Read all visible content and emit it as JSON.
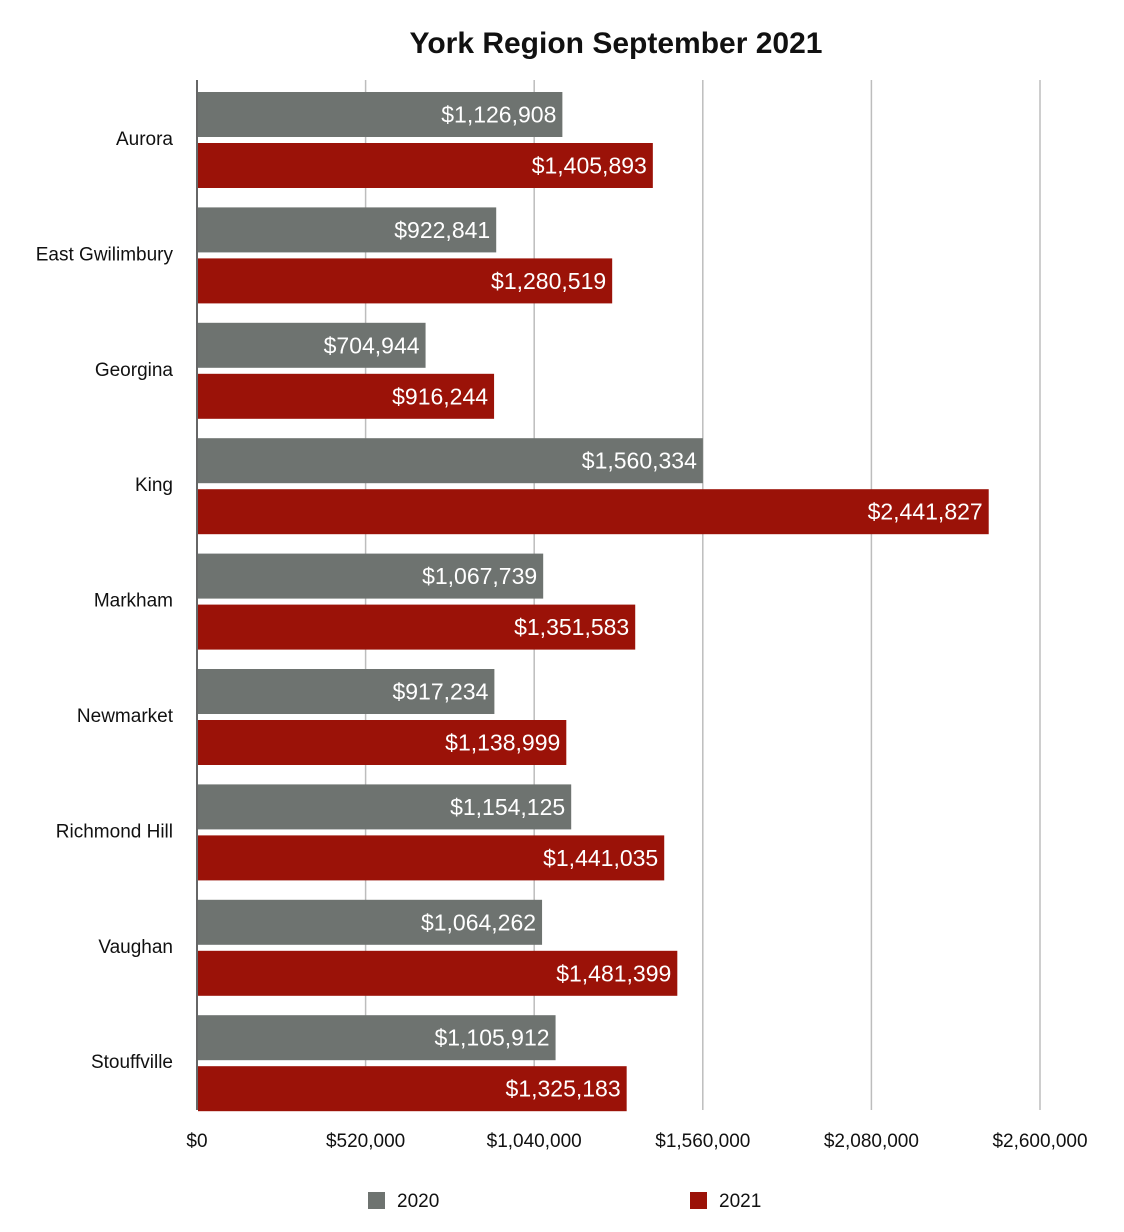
{
  "chart_data": {
    "type": "bar",
    "orientation": "horizontal",
    "title": "York Region September 2021",
    "categories": [
      "Aurora",
      "East Gwilimbury",
      "Georgina",
      "King",
      "Markham",
      "Newmarket",
      "Richmond Hill",
      "Vaughan",
      "Stouffville"
    ],
    "series": [
      {
        "name": "2020",
        "color": "#6e7370",
        "values": [
          1126908,
          922841,
          704944,
          1560334,
          1067739,
          917234,
          1154125,
          1064262,
          1105912
        ],
        "labels": [
          "$1,126,908",
          "$922,841",
          "$704,944",
          "$1,560,334",
          "$1,067,739",
          "$917,234",
          "$1,154,125",
          "$1,064,262",
          "$1,105,912"
        ]
      },
      {
        "name": "2021",
        "color": "#9b1208",
        "values": [
          1405893,
          1280519,
          916244,
          2441827,
          1351583,
          1138999,
          1441035,
          1481399,
          1325183
        ],
        "labels": [
          "$1,405,893",
          "$1,280,519",
          "$916,244",
          "$2,441,827",
          "$1,351,583",
          "$1,138,999",
          "$1,441,035",
          "$1,481,399",
          "$1,325,183"
        ]
      }
    ],
    "xlim": [
      0,
      2600000
    ],
    "x_ticks": [
      0,
      520000,
      1040000,
      1560000,
      2080000,
      2600000
    ],
    "x_tick_labels": [
      "$0",
      "$520,000",
      "$1,040,000",
      "$1,560,000",
      "$2,080,000",
      "$2,600,000"
    ],
    "grid": true,
    "legend_position": "bottom"
  }
}
